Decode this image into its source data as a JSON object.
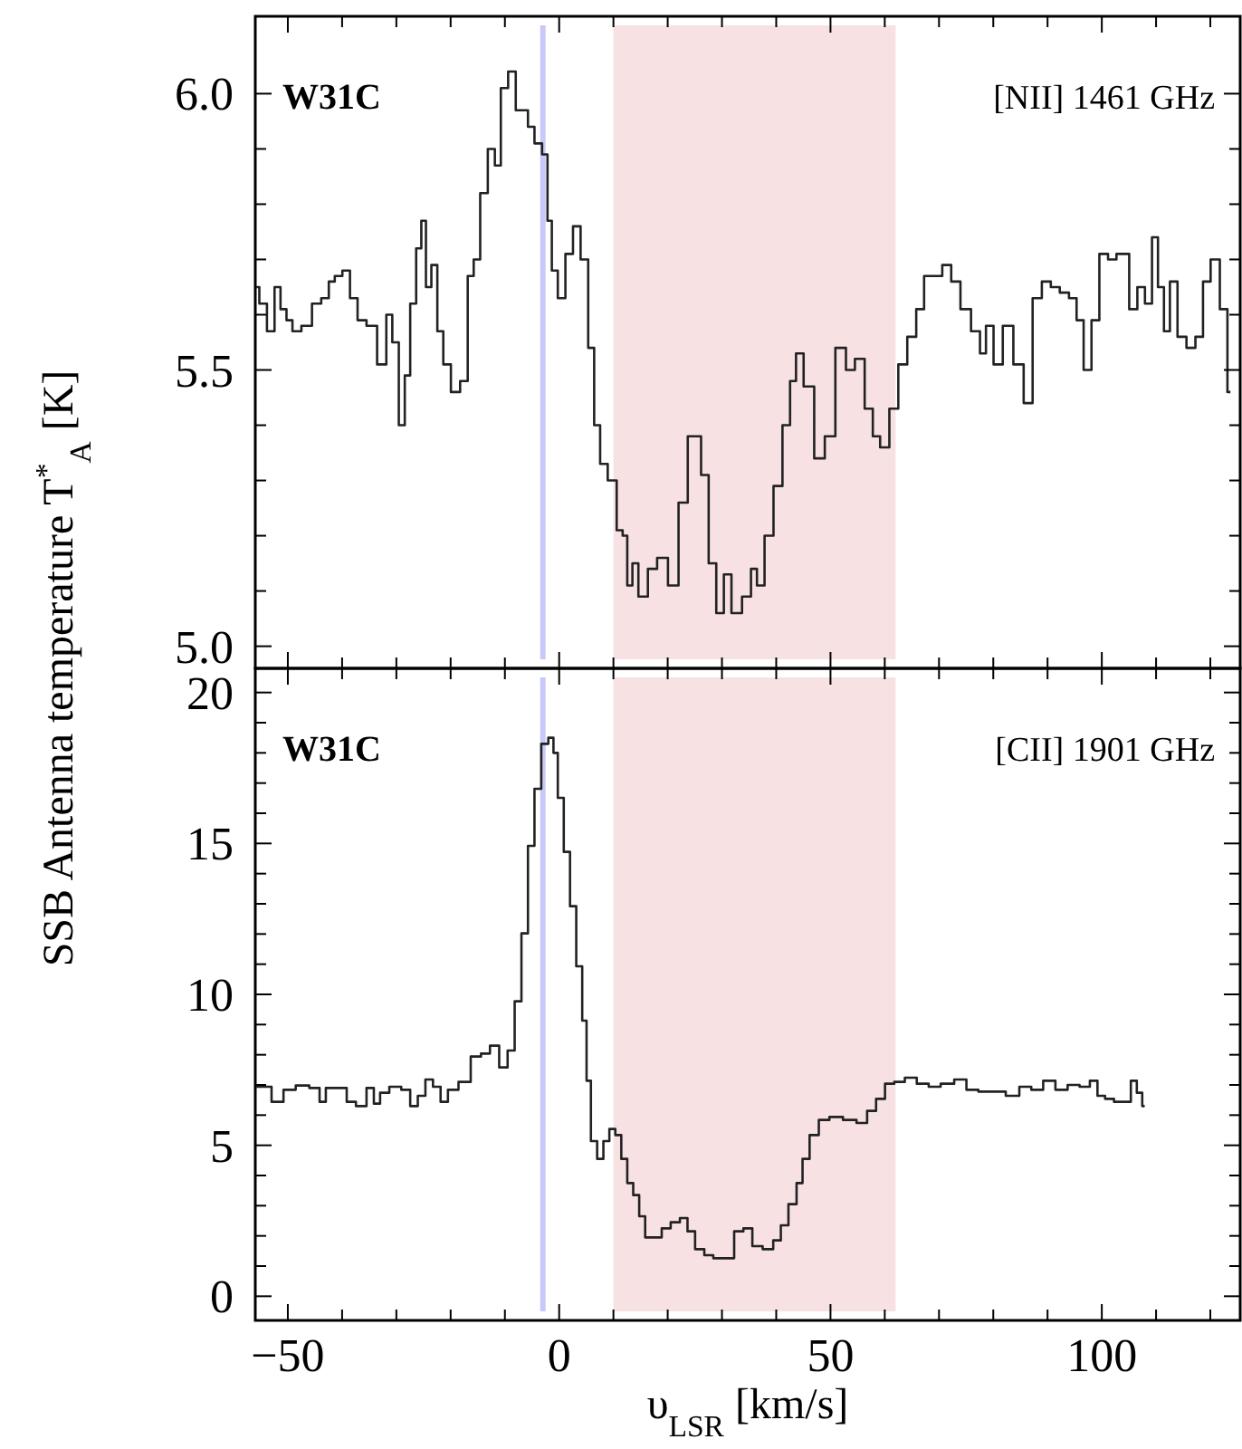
{
  "chart_data": [
    {
      "type": "step",
      "ylabel": "SSB Antenna temperature T$^{*}$$_{A}$ [K]",
      "annotations": [
        "W31C",
        "[NII] 1461 GHz"
      ],
      "tick_labels": "y",
      "xlim": [
        -56,
        125.5
      ],
      "ylim": [
        4.96,
        6.14
      ],
      "xticks": [
        {
          "value": -50,
          "label": null
        },
        {
          "value": -40,
          "label": null
        },
        {
          "value": -30,
          "label": null
        },
        {
          "value": -20,
          "label": null
        },
        {
          "value": -10,
          "label": null
        },
        {
          "value": 0,
          "label": null
        },
        {
          "value": 10,
          "label": null
        },
        {
          "value": 20,
          "label": null
        },
        {
          "value": 30,
          "label": null
        },
        {
          "value": 40,
          "label": null
        },
        {
          "value": 50,
          "label": null
        },
        {
          "value": 60,
          "label": null
        },
        {
          "value": 70,
          "label": null
        },
        {
          "value": 80,
          "label": null
        },
        {
          "value": 90,
          "label": null
        },
        {
          "value": 100,
          "label": null
        },
        {
          "value": 110,
          "label": null
        },
        {
          "value": 120,
          "label": null
        }
      ],
      "yticks": [
        {
          "value": 5,
          "label": "5.0"
        },
        {
          "value": 5.1,
          "label": null
        },
        {
          "value": 5.2,
          "label": null
        },
        {
          "value": 5.3,
          "label": null
        },
        {
          "value": 5.4,
          "label": null
        },
        {
          "value": 5.5,
          "label": "5.5"
        },
        {
          "value": 5.6,
          "label": null
        },
        {
          "value": 5.7,
          "label": null
        },
        {
          "value": 5.8,
          "label": null
        },
        {
          "value": 5.9,
          "label": null
        },
        {
          "value": 6,
          "label": "6.0"
        }
      ],
      "bands": [
        {
          "axis": "x",
          "from": 10,
          "to": 62,
          "color": "#f7e1e3"
        }
      ],
      "ref_lines": [
        {
          "axis": "x",
          "value": -3,
          "color": "#c8c8fa"
        }
      ],
      "series": [
        {
          "color": "#222222",
          "x": [
            -55.8,
            -54.7,
            -53,
            -51.9,
            -50.8,
            -49.7,
            -48.6,
            -46.4,
            -44.7,
            -43,
            -41.9,
            -40.8,
            -39.1,
            -38,
            -36.3,
            -34.7,
            -32.4,
            -31.3,
            -30.2,
            -28.9,
            -28,
            -26.9,
            -25.8,
            -25,
            -24.1,
            -23,
            -21.9,
            -20.8,
            -19.1,
            -17.4,
            -16.3,
            -15.2,
            -13.9,
            -12.4,
            -11.3,
            -10.2,
            -8.6,
            -7.4,
            -6.3,
            -5.2,
            -3.9,
            -2.4,
            -1.9,
            -0.8,
            0.3,
            2,
            3.1,
            4.8,
            5.9,
            7,
            8.1,
            9.8,
            11.4,
            12,
            13.1,
            13.9,
            15.3,
            17.4,
            18.7,
            21.4,
            22.6,
            24.8,
            25.3,
            27,
            28.1,
            29.8,
            30.9,
            32.6,
            34.8,
            35.9,
            37,
            38.7,
            40.3,
            42,
            43.1,
            44.2,
            45.9,
            48.1,
            49.8,
            52,
            53.7,
            55.3,
            57.3,
            58.3,
            60,
            61.7,
            63.3,
            65,
            66.6,
            67.9,
            69.8,
            71.4,
            73.1,
            74.8,
            77,
            78.1,
            79.2,
            80.9,
            82.6,
            84.8,
            86.4,
            88.1,
            89.8,
            91.4,
            93.1,
            94.8,
            95.9,
            97.4,
            98.8,
            100.3,
            102,
            103.4,
            104.2,
            105.9,
            107.2,
            108.7,
            109.8,
            110.9,
            112,
            113.1,
            114.8,
            116.4,
            118.1,
            119.2,
            120.9,
            122.6,
            123.7
          ],
          "values": [
            5.65,
            5.62,
            5.57,
            5.65,
            5.61,
            5.59,
            5.57,
            5.58,
            5.62,
            5.63,
            5.66,
            5.67,
            5.68,
            5.63,
            5.59,
            5.58,
            5.51,
            5.6,
            5.55,
            5.4,
            5.49,
            5.62,
            5.72,
            5.77,
            5.65,
            5.69,
            5.57,
            5.51,
            5.46,
            5.48,
            5.67,
            5.7,
            5.82,
            5.9,
            5.87,
            6.01,
            6.04,
            5.97,
            5.97,
            5.94,
            5.91,
            5.89,
            5.77,
            5.68,
            5.63,
            5.71,
            5.76,
            5.7,
            5.54,
            5.4,
            5.33,
            5.3,
            5.21,
            5.2,
            5.11,
            5.15,
            5.09,
            5.14,
            5.16,
            5.11,
            5.26,
            5.38,
            5.38,
            5.31,
            5.15,
            5.06,
            5.13,
            5.06,
            5.09,
            5.14,
            5.11,
            5.2,
            5.29,
            5.4,
            5.48,
            5.53,
            5.47,
            5.34,
            5.38,
            5.54,
            5.5,
            5.52,
            5.43,
            5.38,
            5.36,
            5.43,
            5.51,
            5.56,
            5.61,
            5.67,
            5.67,
            5.69,
            5.66,
            5.61,
            5.57,
            5.53,
            5.58,
            5.51,
            5.58,
            5.51,
            5.44,
            5.63,
            5.66,
            5.65,
            5.64,
            5.63,
            5.59,
            5.5,
            5.59,
            5.71,
            5.7,
            5.71,
            5.71,
            5.61,
            5.65,
            5.62,
            5.74,
            5.65,
            5.57,
            5.66,
            5.56,
            5.54,
            5.56,
            5.66,
            5.7,
            5.61,
            5.46
          ]
        }
      ]
    },
    {
      "type": "step",
      "xlabel": "υ$_{LSR}$ [km/s]",
      "annotations": [
        "W31C",
        "[CII] 1901 GHz"
      ],
      "xlim": [
        -56,
        125.5
      ],
      "ylim": [
        -0.8,
        20.8
      ],
      "xticks": [
        {
          "value": -50,
          "label": "−50"
        },
        {
          "value": -40,
          "label": null
        },
        {
          "value": -30,
          "label": null
        },
        {
          "value": -20,
          "label": null
        },
        {
          "value": -10,
          "label": null
        },
        {
          "value": 0,
          "label": "0"
        },
        {
          "value": 10,
          "label": null
        },
        {
          "value": 20,
          "label": null
        },
        {
          "value": 30,
          "label": null
        },
        {
          "value": 40,
          "label": null
        },
        {
          "value": 50,
          "label": "50"
        },
        {
          "value": 60,
          "label": null
        },
        {
          "value": 70,
          "label": null
        },
        {
          "value": 80,
          "label": null
        },
        {
          "value": 90,
          "label": null
        },
        {
          "value": 100,
          "label": "100"
        },
        {
          "value": 110,
          "label": null
        },
        {
          "value": 120,
          "label": null
        }
      ],
      "yticks": [
        0,
        {
          "value": 1,
          "label": null
        },
        {
          "value": 2,
          "label": null
        },
        {
          "value": 3,
          "label": null
        },
        {
          "value": 4,
          "label": null
        },
        5,
        {
          "value": 6,
          "label": null
        },
        {
          "value": 7,
          "label": null
        },
        {
          "value": 8,
          "label": null
        },
        {
          "value": 9,
          "label": null
        },
        10,
        {
          "value": 11,
          "label": null
        },
        {
          "value": 12,
          "label": null
        },
        {
          "value": 13,
          "label": null
        },
        {
          "value": 14,
          "label": null
        },
        15,
        {
          "value": 16,
          "label": null
        },
        {
          "value": 17,
          "label": null
        },
        {
          "value": 18,
          "label": null
        },
        {
          "value": 19,
          "label": null
        },
        20
      ],
      "bands": [
        {
          "axis": "x",
          "from": 10,
          "to": 62,
          "color": "#f7e1e3"
        }
      ],
      "ref_lines": [
        {
          "axis": "x",
          "value": -3,
          "color": "#c8c8fa"
        }
      ],
      "series": [
        {
          "color": "#222222",
          "x": [
            -55.8,
            -54.1,
            -51.9,
            -49.7,
            -47.4,
            -44.7,
            -43.6,
            -42.4,
            -39.7,
            -38.6,
            -36.3,
            -34.7,
            -33.6,
            -32.4,
            -30.2,
            -28,
            -26.9,
            -25.2,
            -24.1,
            -22.4,
            -21.3,
            -19.7,
            -17.4,
            -15.2,
            -13.6,
            -11.9,
            -10.2,
            -8.8,
            -7.6,
            -6.3,
            -5.2,
            -3.9,
            -2.7,
            -1.3,
            -0.8,
            0.3,
            1.4,
            2.6,
            3.7,
            4.8,
            5.3,
            6.4,
            7.6,
            8.7,
            9.8,
            10.9,
            12,
            13.1,
            14.2,
            15.3,
            16.4,
            18.1,
            19.7,
            21.4,
            23.1,
            24.2,
            25.9,
            27.6,
            29.2,
            31.4,
            33.1,
            34.8,
            36.4,
            38.6,
            40.3,
            41.4,
            43.1,
            44.4,
            45.3,
            47,
            48.7,
            50.9,
            53.7,
            55.9,
            57.6,
            59.2,
            60.9,
            62.6,
            64.8,
            67,
            69.2,
            71.4,
            74.2,
            75.9,
            78.6,
            80.9,
            83.7,
            85.9,
            88.1,
            90.3,
            92.6,
            94.8,
            97,
            98.6,
            99.8,
            101.4,
            103.1,
            104.8,
            105.9,
            107,
            107.9
          ],
          "values": [
            6.94,
            6.94,
            6.44,
            6.84,
            6.98,
            6.9,
            6.44,
            6.9,
            6.9,
            6.44,
            6.3,
            6.9,
            6.38,
            6.74,
            6.94,
            6.84,
            6.3,
            6.64,
            7.18,
            6.94,
            6.44,
            6.84,
            7.1,
            7.94,
            8.04,
            8.3,
            7.58,
            8.14,
            9.77,
            12.02,
            14.92,
            16.81,
            18.3,
            18.5,
            18,
            16.51,
            14.72,
            12.92,
            10.93,
            9.13,
            7.14,
            5.14,
            4.55,
            5.14,
            5.54,
            5.34,
            4.55,
            3.75,
            3.35,
            2.65,
            1.95,
            1.95,
            2.25,
            2.45,
            2.59,
            2.15,
            1.56,
            1.36,
            1.26,
            1.26,
            2.15,
            2.25,
            1.66,
            1.56,
            1.85,
            2.35,
            3.05,
            3.75,
            4.55,
            5.34,
            5.84,
            5.94,
            5.84,
            5.74,
            6.14,
            6.54,
            7.04,
            7.1,
            7.24,
            7.04,
            6.94,
            7.04,
            7.18,
            6.84,
            6.78,
            6.78,
            6.64,
            6.94,
            6.84,
            7.14,
            6.84,
            7,
            6.94,
            7.14,
            6.64,
            6.54,
            6.44,
            6.44,
            7.14,
            6.74,
            6.3
          ]
        }
      ]
    }
  ]
}
